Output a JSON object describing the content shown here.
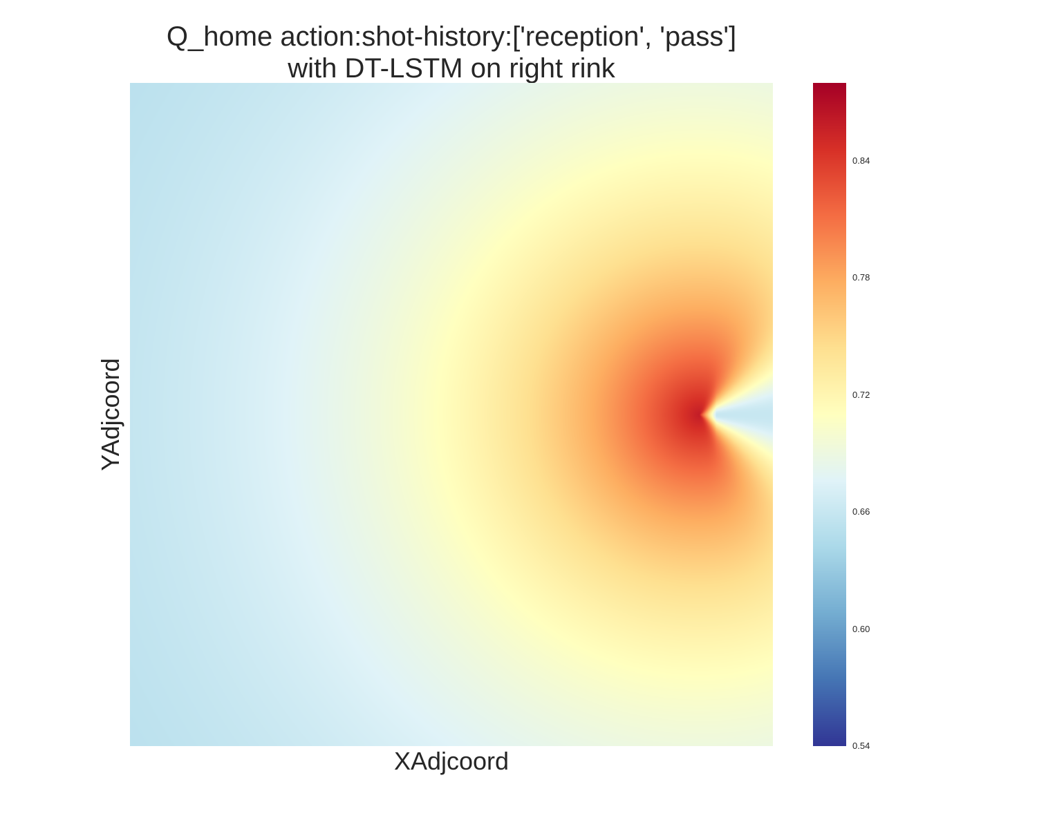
{
  "chart_data": {
    "type": "heatmap",
    "title_lines": [
      "Q_home action:shot-history:['reception', 'pass']",
      "with DT-LSTM on right rink"
    ],
    "xlabel": "XAdjcoord",
    "ylabel": "YAdjcoord",
    "colormap": "RdYlBu_r",
    "colorbar": {
      "range": [
        0.54,
        0.88
      ],
      "ticks": [
        "0.54",
        "0.60",
        "0.66",
        "0.72",
        "0.78",
        "0.84"
      ]
    },
    "field": {
      "peak_value": 0.86,
      "peak_location": "right-center",
      "behind_peak_value": 0.66,
      "left_corner_value": 0.64,
      "right_edge_value": 0.71
    },
    "grid": false,
    "colors": {
      "cmap_stops": [
        "#313695",
        "#4575b4",
        "#74add1",
        "#abd9e9",
        "#e0f3f8",
        "#ffffbf",
        "#fee090",
        "#fdae61",
        "#f46d43",
        "#d73027",
        "#a50026"
      ]
    }
  }
}
